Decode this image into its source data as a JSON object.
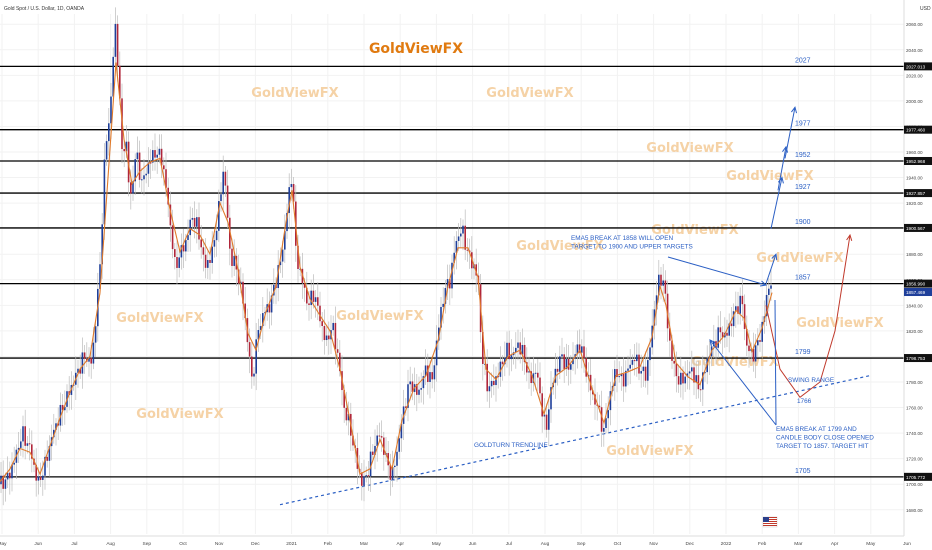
{
  "header": {
    "symbol_line": "Gold Spot / U.S. Dollar, 1D, OANDA",
    "currency": "USD"
  },
  "title_watermark": "GoldViewFX",
  "watermark_text": "GoldViewFX",
  "chart_data": {
    "type": "candlestick",
    "title": "GoldViewFX",
    "x_ticks": [
      "May",
      "Jun",
      "Jul",
      "Aug",
      "Sep",
      "Oct",
      "Nov",
      "Dec",
      "2021",
      "Feb",
      "Mar",
      "Apr",
      "May",
      "Jun",
      "Jul",
      "Aug",
      "Sep",
      "Oct",
      "Nov",
      "Dec",
      "2022",
      "Feb",
      "Mar",
      "Apr",
      "May",
      "Jun"
    ],
    "y_ticks": [
      "2060.00",
      "2040.00",
      "2020.00",
      "2000.00",
      "1980.00",
      "1960.00",
      "1940.00",
      "1920.00",
      "1900.00",
      "1880.00",
      "1860.00",
      "1840.00",
      "1820.00",
      "1800.00",
      "1780.00",
      "1760.00",
      "1740.00",
      "1720.00",
      "1700.00",
      "1680.00"
    ],
    "ylim": [
      1672,
      2068
    ],
    "price_levels": [
      {
        "label": "2027",
        "axis_tag": "2027.013",
        "value": 2027.013
      },
      {
        "label": "1977",
        "axis_tag": "1977.460",
        "value": 1977.46
      },
      {
        "label": "1952",
        "axis_tag": "1952.968",
        "value": 1952.968
      },
      {
        "label": "1927",
        "axis_tag": "1927.857",
        "value": 1927.857
      },
      {
        "label": "1900",
        "axis_tag": "1900.567",
        "value": 1900.567
      },
      {
        "label": "1857",
        "axis_tag": "1856.990",
        "value": 1856.99
      },
      {
        "label": "1799",
        "axis_tag": "1798.753",
        "value": 1798.753
      },
      {
        "label": "1705",
        "axis_tag": "1705.772",
        "value": 1705.772
      }
    ],
    "current_price_tag": "1857.469",
    "price_path": [
      [
        0,
        1700
      ],
      [
        8,
        1705
      ],
      [
        15,
        1720
      ],
      [
        22,
        1740
      ],
      [
        30,
        1728
      ],
      [
        38,
        1700
      ],
      [
        45,
        1715
      ],
      [
        52,
        1738
      ],
      [
        60,
        1755
      ],
      [
        68,
        1770
      ],
      [
        76,
        1785
      ],
      [
        84,
        1800
      ],
      [
        92,
        1795
      ],
      [
        100,
        1870
      ],
      [
        105,
        1960
      ],
      [
        110,
        1990
      ],
      [
        115,
        2060
      ],
      [
        118,
        2030
      ],
      [
        122,
        1960
      ],
      [
        126,
        1970
      ],
      [
        130,
        1920
      ],
      [
        136,
        1960
      ],
      [
        142,
        1935
      ],
      [
        148,
        1950
      ],
      [
        155,
        1960
      ],
      [
        162,
        1955
      ],
      [
        168,
        1920
      ],
      [
        175,
        1870
      ],
      [
        180,
        1880
      ],
      [
        186,
        1890
      ],
      [
        192,
        1910
      ],
      [
        198,
        1900
      ],
      [
        205,
        1870
      ],
      [
        212,
        1880
      ],
      [
        218,
        1910
      ],
      [
        224,
        1950
      ],
      [
        230,
        1880
      ],
      [
        236,
        1870
      ],
      [
        242,
        1850
      ],
      [
        248,
        1810
      ],
      [
        252,
        1780
      ],
      [
        258,
        1820
      ],
      [
        264,
        1835
      ],
      [
        270,
        1840
      ],
      [
        276,
        1860
      ],
      [
        282,
        1880
      ],
      [
        288,
        1920
      ],
      [
        292,
        1945
      ],
      [
        296,
        1880
      ],
      [
        302,
        1860
      ],
      [
        308,
        1840
      ],
      [
        314,
        1850
      ],
      [
        320,
        1830
      ],
      [
        326,
        1810
      ],
      [
        332,
        1825
      ],
      [
        338,
        1800
      ],
      [
        344,
        1760
      ],
      [
        350,
        1745
      ],
      [
        356,
        1720
      ],
      [
        362,
        1700
      ],
      [
        368,
        1710
      ],
      [
        374,
        1730
      ],
      [
        380,
        1740
      ],
      [
        386,
        1720
      ],
      [
        392,
        1705
      ],
      [
        398,
        1730
      ],
      [
        404,
        1760
      ],
      [
        410,
        1780
      ],
      [
        418,
        1770
      ],
      [
        426,
        1790
      ],
      [
        432,
        1780
      ],
      [
        438,
        1820
      ],
      [
        444,
        1850
      ],
      [
        450,
        1860
      ],
      [
        456,
        1890
      ],
      [
        462,
        1900
      ],
      [
        468,
        1880
      ],
      [
        474,
        1870
      ],
      [
        478,
        1860
      ],
      [
        482,
        1800
      ],
      [
        488,
        1775
      ],
      [
        494,
        1780
      ],
      [
        500,
        1790
      ],
      [
        506,
        1805
      ],
      [
        512,
        1800
      ],
      [
        518,
        1810
      ],
      [
        524,
        1800
      ],
      [
        530,
        1780
      ],
      [
        536,
        1790
      ],
      [
        542,
        1760
      ],
      [
        546,
        1740
      ],
      [
        550,
        1770
      ],
      [
        556,
        1790
      ],
      [
        562,
        1800
      ],
      [
        568,
        1790
      ],
      [
        574,
        1800
      ],
      [
        580,
        1810
      ],
      [
        586,
        1790
      ],
      [
        592,
        1770
      ],
      [
        598,
        1760
      ],
      [
        604,
        1740
      ],
      [
        610,
        1770
      ],
      [
        616,
        1790
      ],
      [
        622,
        1780
      ],
      [
        628,
        1790
      ],
      [
        634,
        1800
      ],
      [
        640,
        1790
      ],
      [
        646,
        1785
      ],
      [
        652,
        1820
      ],
      [
        656,
        1850
      ],
      [
        660,
        1860
      ],
      [
        664,
        1860
      ],
      [
        668,
        1820
      ],
      [
        674,
        1790
      ],
      [
        680,
        1780
      ],
      [
        686,
        1785
      ],
      [
        692,
        1790
      ],
      [
        698,
        1775
      ],
      [
        702,
        1780
      ],
      [
        708,
        1800
      ],
      [
        714,
        1810
      ],
      [
        720,
        1820
      ],
      [
        726,
        1815
      ],
      [
        732,
        1830
      ],
      [
        738,
        1840
      ],
      [
        742,
        1845
      ],
      [
        746,
        1810
      ],
      [
        752,
        1800
      ],
      [
        758,
        1810
      ],
      [
        764,
        1830
      ],
      [
        768,
        1855
      ],
      [
        772,
        1857
      ]
    ],
    "ema5_path": [
      [
        0,
        1702
      ],
      [
        10,
        1712
      ],
      [
        20,
        1728
      ],
      [
        30,
        1725
      ],
      [
        40,
        1708
      ],
      [
        50,
        1730
      ],
      [
        60,
        1752
      ],
      [
        70,
        1772
      ],
      [
        80,
        1790
      ],
      [
        90,
        1800
      ],
      [
        100,
        1850
      ],
      [
        108,
        1940
      ],
      [
        116,
        2030
      ],
      [
        124,
        1970
      ],
      [
        132,
        1935
      ],
      [
        140,
        1945
      ],
      [
        150,
        1952
      ],
      [
        160,
        1955
      ],
      [
        170,
        1915
      ],
      [
        180,
        1882
      ],
      [
        190,
        1900
      ],
      [
        200,
        1895
      ],
      [
        210,
        1880
      ],
      [
        220,
        1920
      ],
      [
        228,
        1905
      ],
      [
        238,
        1868
      ],
      [
        248,
        1818
      ],
      [
        256,
        1805
      ],
      [
        266,
        1835
      ],
      [
        276,
        1855
      ],
      [
        286,
        1905
      ],
      [
        292,
        1930
      ],
      [
        300,
        1870
      ],
      [
        310,
        1845
      ],
      [
        320,
        1832
      ],
      [
        330,
        1820
      ],
      [
        340,
        1790
      ],
      [
        350,
        1750
      ],
      [
        360,
        1708
      ],
      [
        370,
        1712
      ],
      [
        380,
        1735
      ],
      [
        392,
        1712
      ],
      [
        402,
        1750
      ],
      [
        414,
        1775
      ],
      [
        426,
        1785
      ],
      [
        438,
        1812
      ],
      [
        448,
        1855
      ],
      [
        458,
        1885
      ],
      [
        468,
        1885
      ],
      [
        478,
        1862
      ],
      [
        486,
        1790
      ],
      [
        496,
        1782
      ],
      [
        508,
        1800
      ],
      [
        520,
        1805
      ],
      [
        532,
        1785
      ],
      [
        544,
        1755
      ],
      [
        556,
        1785
      ],
      [
        568,
        1792
      ],
      [
        580,
        1805
      ],
      [
        592,
        1775
      ],
      [
        604,
        1748
      ],
      [
        616,
        1785
      ],
      [
        628,
        1788
      ],
      [
        640,
        1792
      ],
      [
        652,
        1815
      ],
      [
        660,
        1855
      ],
      [
        666,
        1840
      ],
      [
        676,
        1795
      ],
      [
        688,
        1784
      ],
      [
        700,
        1778
      ],
      [
        712,
        1805
      ],
      [
        724,
        1816
      ],
      [
        736,
        1836
      ],
      [
        744,
        1830
      ],
      [
        752,
        1804
      ],
      [
        762,
        1822
      ],
      [
        772,
        1850
      ]
    ],
    "projection_path": [
      [
        766,
        1840
      ],
      [
        780,
        1790
      ],
      [
        800,
        1768
      ],
      [
        820,
        1780
      ],
      [
        835,
        1820
      ],
      [
        845,
        1870
      ],
      [
        850,
        1895
      ]
    ],
    "trendline": [
      [
        280,
        1684
      ],
      [
        870,
        1785
      ]
    ],
    "annotations": [
      {
        "id": "ema5-1858",
        "lines": [
          "EMA5 BREAK AT 1858 WILL OPEN",
          "TARGET TO 1900 AND UPPER TARGETS"
        ]
      },
      {
        "id": "swing-range",
        "lines": [
          "SWING RANGE"
        ]
      },
      {
        "id": "level-1766",
        "lines": [
          "1766"
        ]
      },
      {
        "id": "ema5-1799",
        "lines": [
          "EMA5 BREAK AT 1799 AND",
          "CANDLE BODY CLOSE OPENED",
          "TARGET TO 1857. TARGET HIT"
        ]
      },
      {
        "id": "goldturn",
        "lines": [
          "GOLDTURN TRENDLINE"
        ]
      }
    ],
    "series": [
      {
        "name": "",
        "color": "#1e3a8a"
      },
      {
        "name": "EMA5",
        "color": "#e07a2a"
      }
    ]
  },
  "colors": {
    "bull": "#1f3f9a",
    "bear": "#b0263a",
    "ema": "#e07a2a",
    "level": "#000000",
    "level_label": "#2b5fc4",
    "arrow": "#2b5fc4",
    "trend": "#2b5fc4",
    "projection": "#c0392b",
    "watermark": "#f5d2a6",
    "title": "#e07a10",
    "axis_text": "#444444",
    "grid": "#f2f2f2"
  }
}
